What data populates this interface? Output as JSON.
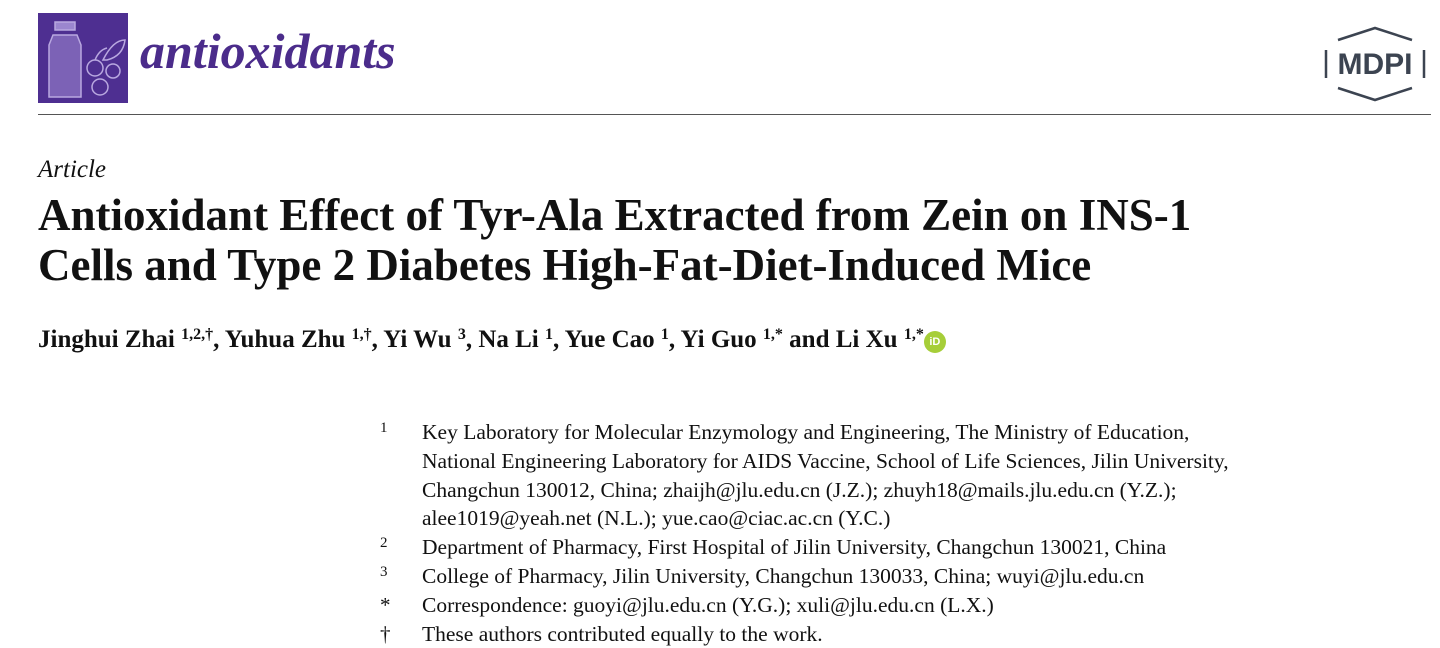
{
  "header": {
    "journal_name": "antioxidants",
    "publisher_logo": "MDPI",
    "brand_color": "#4e2f91"
  },
  "article": {
    "type": "Article",
    "title_line1": "Antioxidant Effect of Tyr-Ala Extracted from Zein on INS-1",
    "title_line2": "Cells and Type 2 Diabetes High-Fat-Diet-Induced Mice",
    "authors": [
      {
        "name": "Jinghui Zhai",
        "sup": "1,2,†",
        "sep": ", "
      },
      {
        "name": "Yuhua Zhu",
        "sup": "1,†",
        "sep": ", "
      },
      {
        "name": "Yi Wu",
        "sup": "3",
        "sep": ", "
      },
      {
        "name": "Na Li",
        "sup": "1",
        "sep": ", "
      },
      {
        "name": "Yue Cao",
        "sup": "1",
        "sep": ", "
      },
      {
        "name": "Yi Guo",
        "sup": "1,*",
        "sep": " and "
      },
      {
        "name": "Li Xu",
        "sup": "1,*",
        "sep": ""
      }
    ],
    "orcid_label": "iD",
    "affiliations": [
      {
        "mark": "1",
        "text": "Key Laboratory for Molecular Enzymology and Engineering, The Ministry of Education,\nNational Engineering Laboratory for AIDS Vaccine, School of Life Sciences, Jilin University,\nChangchun 130012, China; zhaijh@jlu.edu.cn (J.Z.); zhuyh18@mails.jlu.edu.cn (Y.Z.);\nalee1019@yeah.net (N.L.); yue.cao@ciac.ac.cn (Y.C.)"
      },
      {
        "mark": "2",
        "text": "Department of Pharmacy, First Hospital of Jilin University, Changchun 130021, China"
      },
      {
        "mark": "3",
        "text": "College of Pharmacy, Jilin University, Changchun 130033, China; wuyi@jlu.edu.cn"
      },
      {
        "mark": "*",
        "text": "Correspondence: guoyi@jlu.edu.cn (Y.G.); xuli@jlu.edu.cn (L.X.)"
      },
      {
        "mark": "†",
        "text": "These authors contributed equally to the work."
      }
    ]
  }
}
